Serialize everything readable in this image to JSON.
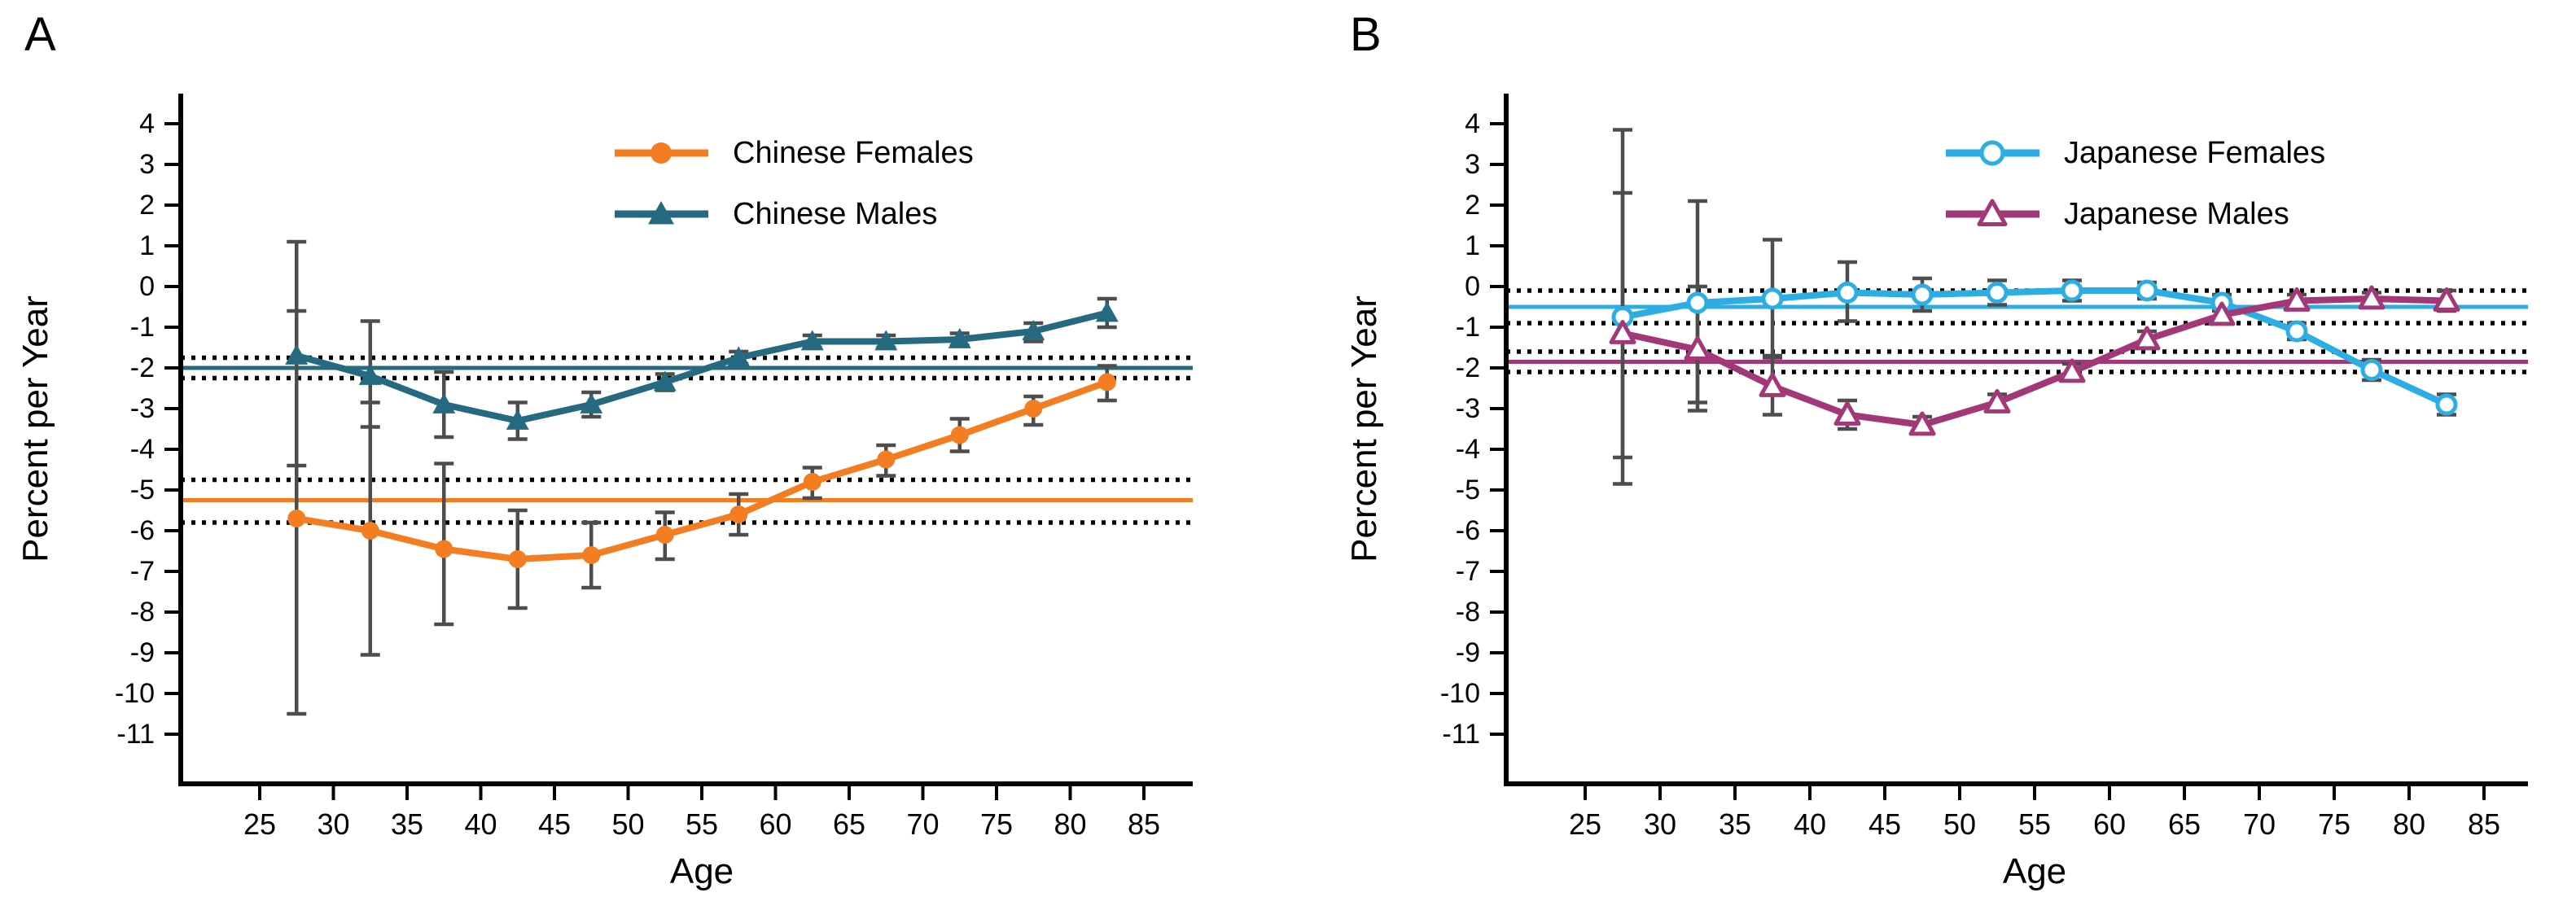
{
  "figure": {
    "panel_labels": [
      "A",
      "B"
    ],
    "errorbar_color": "#4d4d4d",
    "axis_color": "#000000",
    "background": "#ffffff"
  },
  "chart_data": [
    {
      "type": "line",
      "title": "A",
      "xlabel": "Age",
      "ylabel": "Percent per Year",
      "xlim": [
        20,
        90
      ],
      "ylim": [
        -11.5,
        4.5
      ],
      "xticks": [
        25,
        30,
        35,
        40,
        45,
        50,
        55,
        60,
        65,
        70,
        75,
        80,
        85
      ],
      "yticks": [
        4,
        3,
        2,
        1,
        0,
        -1,
        -2,
        -3,
        -4,
        -5,
        -6,
        -7,
        -8,
        -9,
        -10,
        -11
      ],
      "grid": false,
      "legend_position": "upper-right-inside",
      "x": [
        27.5,
        32.5,
        37.5,
        42.5,
        47.5,
        52.5,
        57.5,
        62.5,
        67.5,
        72.5,
        77.5,
        82.5
      ],
      "series": [
        {
          "name": "Chinese Females",
          "color": "#F47D21",
          "marker": "filled-circle",
          "values": [
            -5.7,
            -6.0,
            -6.45,
            -6.7,
            -6.6,
            -6.1,
            -5.6,
            -4.8,
            -4.25,
            -3.65,
            -3.0,
            -2.35
          ],
          "ci_low": [
            -10.5,
            -9.05,
            -8.3,
            -7.9,
            -7.4,
            -6.7,
            -6.1,
            -5.2,
            -4.65,
            -4.05,
            -3.4,
            -2.8
          ],
          "ci_high": [
            -0.6,
            -2.85,
            -4.35,
            -5.5,
            -5.8,
            -5.55,
            -5.1,
            -4.45,
            -3.9,
            -3.25,
            -2.7,
            -1.95
          ],
          "overall_mean_line": -5.25,
          "overall_mean_ci": [
            -5.8,
            -4.75
          ]
        },
        {
          "name": "Chinese Males",
          "color": "#256A80",
          "marker": "filled-triangle",
          "values": [
            -1.7,
            -2.2,
            -2.9,
            -3.3,
            -2.9,
            -2.35,
            -1.75,
            -1.35,
            -1.35,
            -1.3,
            -1.1,
            -0.65
          ],
          "ci_low": [
            -4.4,
            -3.45,
            -3.7,
            -3.75,
            -3.2,
            -2.55,
            -1.9,
            -1.5,
            -1.5,
            -1.45,
            -1.35,
            -1.0
          ],
          "ci_high": [
            1.1,
            -0.85,
            -2.1,
            -2.85,
            -2.6,
            -2.15,
            -1.6,
            -1.2,
            -1.2,
            -1.15,
            -0.9,
            -0.3
          ],
          "overall_mean_line": -2.0,
          "overall_mean_ci": [
            -2.25,
            -1.75
          ]
        }
      ]
    },
    {
      "type": "line",
      "title": "B",
      "xlabel": "Age",
      "ylabel": "Percent per Year",
      "xlim": [
        20,
        90
      ],
      "ylim": [
        -11.5,
        4.5
      ],
      "xticks": [
        25,
        30,
        35,
        40,
        45,
        50,
        55,
        60,
        65,
        70,
        75,
        80,
        85
      ],
      "yticks": [
        4,
        3,
        2,
        1,
        0,
        -1,
        -2,
        -3,
        -4,
        -5,
        -6,
        -7,
        -8,
        -9,
        -10,
        -11
      ],
      "grid": false,
      "legend_position": "upper-right-inside",
      "x": [
        27.5,
        32.5,
        37.5,
        42.5,
        47.5,
        52.5,
        57.5,
        62.5,
        67.5,
        72.5,
        77.5,
        82.5
      ],
      "series": [
        {
          "name": "Japanese Females",
          "color": "#2CAEE4",
          "marker": "open-circle",
          "values": [
            -0.75,
            -0.4,
            -0.3,
            -0.15,
            -0.2,
            -0.15,
            -0.1,
            -0.1,
            -0.4,
            -1.1,
            -2.05,
            -2.9
          ],
          "ci_low": [
            -4.85,
            -2.85,
            -1.7,
            -0.85,
            -0.6,
            -0.45,
            -0.35,
            -0.3,
            -0.6,
            -1.3,
            -2.3,
            -3.15
          ],
          "ci_high": [
            3.85,
            2.1,
            1.15,
            0.6,
            0.2,
            0.15,
            0.15,
            0.1,
            -0.2,
            -0.9,
            -1.8,
            -2.65
          ],
          "overall_mean_line": -0.5,
          "overall_mean_ci": [
            -0.9,
            -0.1
          ]
        },
        {
          "name": "Japanese Males",
          "color": "#A23878",
          "marker": "open-triangle",
          "values": [
            -1.15,
            -1.55,
            -2.45,
            -3.15,
            -3.4,
            -2.85,
            -2.1,
            -1.3,
            -0.7,
            -0.35,
            -0.3,
            -0.35
          ],
          "ci_low": [
            -4.2,
            -3.05,
            -3.15,
            -3.5,
            -3.6,
            -3.05,
            -2.3,
            -1.5,
            -0.9,
            -0.5,
            -0.45,
            -0.6
          ],
          "ci_high": [
            2.3,
            0.0,
            -1.75,
            -2.8,
            -3.2,
            -2.65,
            -1.9,
            -1.1,
            -0.5,
            -0.2,
            -0.15,
            -0.1
          ],
          "overall_mean_line": -1.85,
          "overall_mean_ci": [
            -2.1,
            -1.6
          ]
        }
      ]
    }
  ]
}
